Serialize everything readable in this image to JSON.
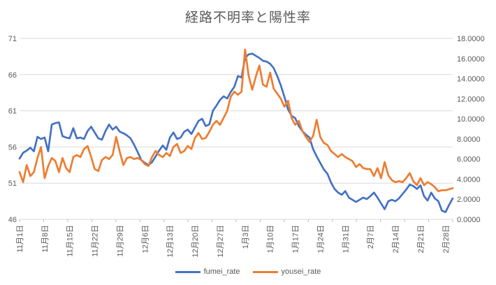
{
  "chart_data": {
    "type": "line",
    "title": "経路不明率と陽性率",
    "grid": "horizontal-only",
    "legend_position": "bottom",
    "x_axis": {
      "tick_labels": [
        "11月1日",
        "11月8日",
        "11月15日",
        "11月22日",
        "11月29日",
        "12月6日",
        "12月13日",
        "12月20日",
        "12月27日",
        "1月3日",
        "1月10日",
        "1月17日",
        "1月24日",
        "1月31日",
        "2月7日",
        "2月14日",
        "2月21日",
        "2月28日"
      ],
      "tick_day_indices": [
        0,
        7,
        14,
        21,
        28,
        35,
        42,
        49,
        56,
        63,
        70,
        77,
        84,
        91,
        98,
        105,
        112,
        119
      ],
      "label_rotation_deg": -90
    },
    "left_axis": {
      "min": 46,
      "max": 71,
      "step": 5,
      "tick_labels_bottom_to_top": [
        "46",
        "51",
        "56",
        "61",
        "66",
        "71"
      ]
    },
    "right_axis": {
      "min": 0,
      "max": 18,
      "step": 2,
      "tick_labels_bottom_to_top": [
        "0.0000",
        "2.0000",
        "4.0000",
        "6.0000",
        "8.0000",
        "10.0000",
        "12.0000",
        "14.0000",
        "16.0000",
        "18.0000"
      ]
    },
    "series": [
      {
        "name": "fumei_rate",
        "axis": "left",
        "color": "#4472C4",
        "values": [
          54.4,
          55.2,
          55.5,
          55.9,
          55.4,
          57.4,
          57.1,
          57.3,
          55.4,
          59.1,
          59.3,
          59.4,
          57.5,
          57.3,
          57.2,
          58.6,
          57.2,
          57.3,
          57.1,
          58.2,
          58.8,
          58.0,
          57.2,
          57.0,
          58.2,
          59.1,
          58.4,
          58.8,
          58.1,
          57.9,
          57.6,
          57.2,
          56.3,
          55.3,
          54.2,
          53.8,
          53.5,
          53.9,
          54.7,
          55.5,
          56.2,
          55.6,
          57.3,
          58.0,
          57.1,
          57.3,
          58.1,
          58.4,
          57.8,
          58.7,
          59.6,
          59.9,
          58.9,
          59.1,
          61.0,
          61.7,
          62.5,
          63.0,
          62.7,
          63.6,
          64.3,
          65.8,
          65.6,
          68.3,
          68.8,
          68.9,
          68.6,
          68.3,
          67.9,
          67.8,
          67.5,
          66.9,
          65.8,
          64.5,
          62.9,
          61.2,
          60.3,
          60.0,
          58.9,
          58.2,
          57.7,
          57.3,
          55.7,
          54.7,
          53.8,
          52.9,
          52.3,
          51.1,
          50.2,
          49.7,
          49.4,
          49.9,
          49.0,
          48.7,
          48.4,
          48.7,
          49.0,
          48.8,
          49.2,
          49.7,
          49.0,
          48.2,
          47.4,
          48.5,
          48.7,
          48.5,
          48.9,
          49.5,
          50.1,
          50.8,
          50.6,
          50.2,
          50.7,
          49.2,
          48.6,
          49.7,
          48.9,
          48.5,
          47.2,
          47.0,
          48.0,
          48.9
        ]
      },
      {
        "name": "yousei_rate",
        "axis": "right",
        "color": "#ED7D31",
        "values": [
          4.7,
          3.7,
          5.4,
          4.3,
          4.7,
          6.1,
          7.2,
          4.1,
          5.3,
          6.1,
          5.8,
          4.7,
          6.1,
          5.1,
          4.7,
          6.2,
          6.4,
          6.2,
          7.0,
          7.3,
          6.2,
          5.0,
          4.8,
          5.9,
          6.2,
          6.0,
          6.4,
          8.2,
          6.7,
          5.4,
          6.1,
          6.2,
          6.0,
          6.1,
          5.9,
          5.5,
          5.3,
          6.2,
          6.8,
          6.4,
          6.2,
          6.6,
          6.3,
          7.2,
          7.5,
          6.6,
          6.8,
          7.3,
          7.0,
          8.1,
          8.6,
          8.0,
          8.1,
          8.7,
          9.4,
          9.8,
          9.4,
          10.1,
          10.8,
          12.2,
          12.7,
          12.4,
          12.7,
          16.9,
          14.3,
          12.9,
          14.2,
          15.3,
          13.4,
          13.2,
          14.6,
          13.0,
          12.5,
          12.0,
          11.2,
          11.8,
          10.1,
          9.4,
          9.8,
          8.8,
          8.2,
          7.7,
          8.3,
          9.9,
          8.2,
          7.6,
          7.4,
          6.8,
          6.5,
          6.2,
          6.5,
          6.2,
          6.0,
          5.8,
          5.2,
          5.5,
          5.1,
          5.0,
          5.0,
          4.3,
          5.1,
          4.1,
          5.7,
          4.4,
          3.9,
          3.7,
          3.8,
          3.7,
          4.1,
          4.6,
          3.8,
          3.4,
          4.1,
          3.4,
          3.7,
          3.5,
          3.2,
          2.8,
          2.9,
          2.9,
          3.0,
          3.1
        ]
      }
    ],
    "colors": {
      "gridline": "#D9D9D9",
      "axis_line": "#D9D9D9",
      "tick_mark": "#BFBFBF",
      "text": "#595959"
    }
  }
}
